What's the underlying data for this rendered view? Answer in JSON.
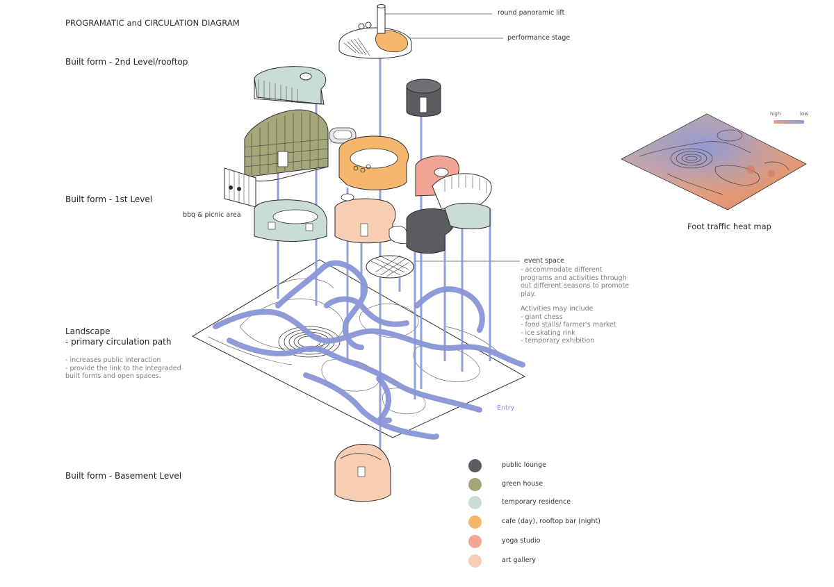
{
  "title": "PROGRAMATIC and CIRCULATION DIAGRAM",
  "sections": {
    "rooftop": "Built form - 2nd Level/rooftop",
    "first_level": "Built form - 1st Level",
    "landscape_1": "Landscape",
    "landscape_2": "- primary circulation path",
    "basement": "Built form - Basement Level"
  },
  "landscape_notes": [
    "- increases public interaction",
    "- provide the link to the integraded",
    "built forms and open spaces."
  ],
  "callouts": {
    "lift": "round panoramic lift",
    "stage": "performance stage",
    "bbq": "bbq & picnic area",
    "event": "event space",
    "entry": "Entry"
  },
  "event_notes": [
    "- accommodate different",
    "programs and activities through",
    "out different seasons to promote",
    "play."
  ],
  "activities_notes": [
    "Activities may include",
    "- giant chess",
    "- food stalls/ farmer's market",
    "- ice skating rink",
    "- temporary exhibition"
  ],
  "heatmap": {
    "title": "Foot traffic heat map",
    "high_label": "high",
    "low_label": "low",
    "high_color": "#e8a07e",
    "low_color": "#8c9ad4"
  },
  "legend": [
    {
      "label": "public lounge",
      "color": "#5a5c60"
    },
    {
      "label": "green house",
      "color": "#a3a77a"
    },
    {
      "label": "temporary residence",
      "color": "#c9dcd5"
    },
    {
      "label": "cafe (day), rooftop bar (night)",
      "color": "#f4b76c"
    },
    {
      "label": "yoga studio",
      "color": "#f2a597"
    },
    {
      "label": "art gallery",
      "color": "#f7cdb3"
    }
  ],
  "colors": {
    "circulation_path": "#8896d6",
    "outline": "#2b2b2b"
  }
}
